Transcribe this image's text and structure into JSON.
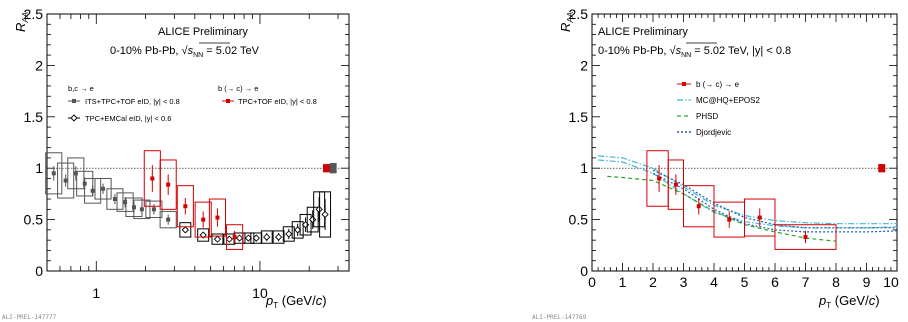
{
  "chart_data": [
    {
      "type": "scatter",
      "xscale": "log",
      "xlim": [
        0.5,
        35
      ],
      "ylim": [
        0,
        2.5
      ],
      "xticklabels": [
        "1",
        "10"
      ],
      "yticklabels": [
        "0",
        "0.5",
        "1",
        "1.5",
        "2",
        "2.5"
      ],
      "ylabel": "R_AA",
      "xlabel": "p_T (GeV/c)",
      "texts": {
        "title1": "ALICE Preliminary",
        "title2_pre": "0-10% Pb-Pb, ",
        "title2_sqrt": "√s",
        "title2_nn": "NN",
        "title2_post": " = 5.02 TeV",
        "leg_head1": "b,c → e",
        "leg_head2": "b (→ c) → e",
        "leg_its": "ITS+TPC+TOF eID, |y| < 0.8",
        "leg_emcal": "TPC+EMCal eID, |y| < 0.6",
        "leg_btof": "TPC+TOF eID, |y| < 0.8",
        "id": "ALI-PREL-147777"
      },
      "series": [
        {
          "name": "ITS+TPC+TOF eID, |y| < 0.8",
          "color": "#555555",
          "x": [
            0.55,
            0.65,
            0.75,
            0.85,
            0.95,
            1.1,
            1.3,
            1.5,
            1.7,
            1.9,
            2.25,
            2.75
          ],
          "y": [
            0.95,
            0.88,
            0.95,
            0.85,
            0.78,
            0.8,
            0.7,
            0.67,
            0.62,
            0.6,
            0.6,
            0.5
          ],
          "err": [
            0.07,
            0.06,
            0.07,
            0.06,
            0.05,
            0.05,
            0.05,
            0.05,
            0.05,
            0.05,
            0.05,
            0.05
          ],
          "sys": [
            0.2,
            0.17,
            0.15,
            0.12,
            0.12,
            0.1,
            0.1,
            0.09,
            0.09,
            0.09,
            0.08,
            0.08
          ]
        },
        {
          "name": "TPC+EMCal eID, |y| < 0.6",
          "color": "#000000",
          "x": [
            3.5,
            4.5,
            5.5,
            6.5,
            7.5,
            8.5,
            9.5,
            11,
            13,
            15,
            17,
            19,
            21,
            23,
            25
          ],
          "y": [
            0.4,
            0.35,
            0.31,
            0.31,
            0.32,
            0.32,
            0.32,
            0.33,
            0.33,
            0.36,
            0.4,
            0.45,
            0.5,
            0.6,
            0.55
          ],
          "err": [
            0.03,
            0.03,
            0.03,
            0.03,
            0.03,
            0.03,
            0.03,
            0.04,
            0.04,
            0.05,
            0.06,
            0.07,
            0.09,
            0.12,
            0.15
          ],
          "sys": [
            0.07,
            0.06,
            0.05,
            0.05,
            0.05,
            0.05,
            0.05,
            0.06,
            0.06,
            0.07,
            0.08,
            0.1,
            0.12,
            0.17,
            0.22
          ]
        },
        {
          "name": "b (→ c) → e TPC+TOF eID, |y| < 0.8",
          "color": "#d40000",
          "x": [
            2.2,
            2.75,
            3.5,
            4.5,
            5.5,
            7.0
          ],
          "y": [
            0.9,
            0.84,
            0.63,
            0.5,
            0.52,
            0.33
          ],
          "err": [
            0.13,
            0.1,
            0.08,
            0.08,
            0.09,
            0.06
          ],
          "sys": [
            0.27,
            0.24,
            0.2,
            0.17,
            0.18,
            0.12
          ]
        }
      ],
      "reference_line": 1,
      "norm_boxes": [
        {
          "x": 25.5,
          "height": 0.04,
          "color": "#d40000"
        },
        {
          "x": 28,
          "height": 0.05,
          "color": "#555555"
        }
      ]
    },
    {
      "type": "line",
      "xlim": [
        0,
        10
      ],
      "ylim": [
        0,
        2.5
      ],
      "xticklabels": [
        "0",
        "1",
        "2",
        "3",
        "4",
        "5",
        "6",
        "7",
        "8",
        "9",
        "10"
      ],
      "yticklabels": [
        "0",
        "0.5",
        "1",
        "1.5",
        "2",
        "2.5"
      ],
      "ylabel": "R_AA",
      "xlabel": "p_T (GeV/c)",
      "texts": {
        "title1": "ALICE Preliminary",
        "title2_pre": "0-10% Pb-Pb, ",
        "title2_sqrt": "√s",
        "title2_nn": "NN",
        "title2_post": " = 5.02 TeV, |y| < 0.8",
        "leg_b": "b (→ c) → e",
        "leg_mc": "MC@HQ+EPOS2",
        "leg_phsd": "PHSD",
        "leg_djo": "Djordjevic",
        "id": "ALI-PREL-147769"
      },
      "series": [
        {
          "name": "b (→ c) → e",
          "color": "#d40000",
          "x": [
            2.2,
            2.75,
            3.5,
            4.5,
            5.5,
            7.0
          ],
          "xlow": [
            1.8,
            2.5,
            3.0,
            4.0,
            5.0,
            6.0
          ],
          "xhigh": [
            2.5,
            3.0,
            4.0,
            5.0,
            6.0,
            8.0
          ],
          "y": [
            0.9,
            0.84,
            0.63,
            0.5,
            0.52,
            0.33
          ],
          "err": [
            0.13,
            0.1,
            0.08,
            0.08,
            0.09,
            0.06
          ],
          "sys": [
            0.27,
            0.24,
            0.2,
            0.17,
            0.18,
            0.12
          ]
        }
      ],
      "models": [
        {
          "name": "MC@HQ+EPOS2",
          "color": "#3fb8d8",
          "dash": "6,2,1.5,2",
          "x": [
            0.2,
            1,
            2,
            3,
            4,
            5,
            6,
            7,
            8,
            9,
            10
          ],
          "ylow": [
            1.08,
            1.06,
            0.95,
            0.75,
            0.57,
            0.48,
            0.44,
            0.42,
            0.42,
            0.42,
            0.43
          ],
          "yhigh": [
            1.12,
            1.1,
            1.0,
            0.82,
            0.64,
            0.54,
            0.49,
            0.47,
            0.46,
            0.46,
            0.46
          ]
        },
        {
          "name": "PHSD",
          "color": "#2ca02c",
          "dash": "4,3",
          "x": [
            0.5,
            1,
            2,
            3,
            4,
            5,
            6,
            7,
            8
          ],
          "y": [
            0.92,
            0.91,
            0.88,
            0.75,
            0.58,
            0.45,
            0.38,
            0.32,
            0.29
          ]
        },
        {
          "name": "Djordjevic",
          "color": "#1f5fa8",
          "dash": "2,2",
          "x": [
            2,
            3,
            4,
            5,
            6,
            7,
            8,
            9,
            10
          ],
          "ylow": [
            0.95,
            0.8,
            0.6,
            0.46,
            0.4,
            0.38,
            0.38,
            0.38,
            0.39
          ],
          "yhigh": [
            0.98,
            0.84,
            0.66,
            0.52,
            0.45,
            0.42,
            0.42,
            0.42,
            0.42
          ]
        }
      ],
      "reference_line": 1,
      "norm_boxes": [
        {
          "x": 9.5,
          "height": 0.04,
          "color": "#d40000"
        }
      ]
    }
  ]
}
